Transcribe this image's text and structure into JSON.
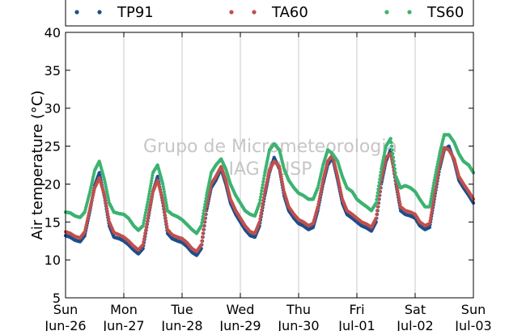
{
  "chart_data": {
    "type": "scatter",
    "ylabel": "Air temperature (°C)",
    "xlabel": "",
    "ylim": [
      5,
      40
    ],
    "xlim": [
      0,
      7
    ],
    "yticks": [
      5,
      10,
      15,
      20,
      25,
      30,
      35,
      40
    ],
    "xticks": [
      {
        "x": 0,
        "day": "Sun",
        "date": "Jun-26"
      },
      {
        "x": 1,
        "day": "Mon",
        "date": "Jun-27"
      },
      {
        "x": 2,
        "day": "Tue",
        "date": "Jun-28"
      },
      {
        "x": 3,
        "day": "Wed",
        "date": "Jun-29"
      },
      {
        "x": 4,
        "day": "Thu",
        "date": "Jun-30"
      },
      {
        "x": 5,
        "day": "Fri",
        "date": "Jul-01"
      },
      {
        "x": 6,
        "day": "Sat",
        "date": "Jul-02"
      },
      {
        "x": 7,
        "day": "Sun",
        "date": "Jul-03"
      }
    ],
    "grid": "vertical",
    "legend_position": "top",
    "watermark": [
      "Grupo de Micrometeorologia",
      "IAG / USP"
    ],
    "series": [
      {
        "name": "TP91",
        "color": "#1f4e8c",
        "x": [
          0.0,
          0.08,
          0.16,
          0.25,
          0.33,
          0.42,
          0.5,
          0.58,
          0.67,
          0.75,
          0.83,
          0.92,
          1.0,
          1.08,
          1.17,
          1.25,
          1.33,
          1.42,
          1.5,
          1.58,
          1.67,
          1.75,
          1.83,
          1.92,
          2.0,
          2.08,
          2.17,
          2.25,
          2.33,
          2.42,
          2.5,
          2.58,
          2.67,
          2.75,
          2.83,
          2.92,
          3.0,
          3.08,
          3.17,
          3.25,
          3.33,
          3.42,
          3.5,
          3.58,
          3.67,
          3.75,
          3.83,
          3.92,
          4.0,
          4.08,
          4.17,
          4.25,
          4.33,
          4.42,
          4.5,
          4.58,
          4.67,
          4.75,
          4.83,
          4.92,
          5.0,
          5.08,
          5.17,
          5.25,
          5.33,
          5.42,
          5.5,
          5.58,
          5.67,
          5.75,
          5.83,
          5.92,
          6.0,
          6.08,
          6.17,
          6.25,
          6.33,
          6.42,
          6.5,
          6.58,
          6.67,
          6.75,
          6.83,
          6.92,
          7.0
        ],
        "values": [
          13.2,
          13.0,
          12.6,
          12.4,
          13.2,
          16.5,
          19.8,
          21.5,
          18.2,
          14.5,
          13.0,
          12.8,
          12.5,
          12.0,
          11.3,
          10.8,
          11.5,
          15.5,
          19.0,
          21.0,
          17.5,
          13.5,
          12.8,
          12.5,
          12.3,
          11.8,
          11.0,
          10.6,
          11.5,
          16.5,
          19.5,
          20.5,
          22.0,
          20.0,
          17.5,
          16.0,
          15.0,
          14.0,
          13.2,
          13.0,
          14.5,
          18.5,
          21.5,
          23.5,
          22.0,
          18.5,
          16.5,
          15.5,
          14.8,
          14.5,
          14.0,
          14.3,
          16.5,
          20.0,
          22.5,
          23.5,
          20.5,
          17.5,
          16.0,
          15.5,
          15.0,
          14.5,
          14.2,
          13.8,
          15.0,
          20.0,
          23.0,
          24.5,
          20.0,
          16.5,
          16.0,
          15.8,
          15.5,
          14.5,
          14.0,
          14.3,
          18.0,
          22.0,
          24.5,
          25.0,
          23.0,
          20.5,
          19.5,
          18.5,
          17.5
        ]
      },
      {
        "name": "TA60",
        "color": "#c0504d",
        "x": [
          0.0,
          0.08,
          0.16,
          0.25,
          0.33,
          0.42,
          0.5,
          0.58,
          0.67,
          0.75,
          0.83,
          0.92,
          1.0,
          1.08,
          1.17,
          1.25,
          1.33,
          1.42,
          1.5,
          1.58,
          1.67,
          1.75,
          1.83,
          1.92,
          2.0,
          2.08,
          2.17,
          2.25,
          2.33,
          2.42,
          2.5,
          2.58,
          2.67,
          2.75,
          2.83,
          2.92,
          3.0,
          3.08,
          3.17,
          3.25,
          3.33,
          3.42,
          3.5,
          3.58,
          3.67,
          3.75,
          3.83,
          3.92,
          4.0,
          4.08,
          4.17,
          4.25,
          4.33,
          4.42,
          4.5,
          4.58,
          4.67,
          4.75,
          4.83,
          4.92,
          5.0,
          5.08,
          5.17,
          5.25,
          5.33,
          5.42,
          5.5,
          5.58,
          5.67,
          5.75,
          5.83,
          5.92,
          6.0,
          6.08,
          6.17,
          6.25,
          6.33,
          6.42,
          6.5,
          6.58,
          6.67,
          6.75,
          6.83,
          6.92,
          7.0
        ],
        "values": [
          13.7,
          13.5,
          13.1,
          12.9,
          13.7,
          16.8,
          19.5,
          20.8,
          18.5,
          15.0,
          13.6,
          13.3,
          13.0,
          12.5,
          11.8,
          11.3,
          12.0,
          15.8,
          19.0,
          20.5,
          17.8,
          14.0,
          13.3,
          13.0,
          12.8,
          12.3,
          11.5,
          11.1,
          12.0,
          17.0,
          20.0,
          21.0,
          22.3,
          20.5,
          18.0,
          16.5,
          15.5,
          14.5,
          13.7,
          13.5,
          15.0,
          19.0,
          21.8,
          23.0,
          22.3,
          19.0,
          17.0,
          16.0,
          15.3,
          15.0,
          14.5,
          14.8,
          17.0,
          20.5,
          23.0,
          23.8,
          21.0,
          18.0,
          16.5,
          16.0,
          15.5,
          15.0,
          14.7,
          14.3,
          15.5,
          20.5,
          23.5,
          24.0,
          20.5,
          17.0,
          16.5,
          16.3,
          16.0,
          15.0,
          14.5,
          14.8,
          18.5,
          22.5,
          24.8,
          24.5,
          23.3,
          21.0,
          20.0,
          19.0,
          18.0
        ]
      },
      {
        "name": "TS60",
        "color": "#3cb371",
        "x": [
          0.0,
          0.08,
          0.16,
          0.25,
          0.33,
          0.42,
          0.5,
          0.58,
          0.67,
          0.75,
          0.83,
          0.92,
          1.0,
          1.08,
          1.17,
          1.25,
          1.33,
          1.42,
          1.5,
          1.58,
          1.67,
          1.75,
          1.83,
          1.92,
          2.0,
          2.08,
          2.17,
          2.25,
          2.33,
          2.42,
          2.5,
          2.58,
          2.67,
          2.75,
          2.83,
          2.92,
          3.0,
          3.08,
          3.17,
          3.25,
          3.33,
          3.42,
          3.5,
          3.58,
          3.67,
          3.75,
          3.83,
          3.92,
          4.0,
          4.08,
          4.17,
          4.25,
          4.33,
          4.42,
          4.5,
          4.58,
          4.67,
          4.75,
          4.83,
          4.92,
          5.0,
          5.08,
          5.17,
          5.25,
          5.33,
          5.42,
          5.5,
          5.58,
          5.67,
          5.75,
          5.83,
          5.92,
          6.0,
          6.08,
          6.17,
          6.25,
          6.33,
          6.42,
          6.5,
          6.58,
          6.67,
          6.75,
          6.83,
          6.92,
          7.0
        ],
        "values": [
          16.3,
          16.2,
          15.8,
          15.6,
          16.3,
          19.0,
          21.8,
          23.0,
          20.5,
          17.5,
          16.3,
          16.1,
          16.0,
          15.5,
          14.5,
          13.9,
          14.5,
          18.0,
          21.5,
          22.5,
          20.0,
          16.5,
          16.0,
          15.7,
          15.3,
          14.7,
          14.0,
          13.5,
          14.5,
          18.5,
          21.5,
          22.5,
          23.3,
          22.0,
          20.0,
          18.5,
          17.5,
          16.5,
          16.0,
          15.8,
          17.5,
          21.5,
          24.5,
          25.3,
          24.5,
          22.0,
          20.5,
          19.5,
          18.8,
          18.5,
          18.0,
          18.0,
          19.5,
          22.5,
          24.5,
          24.0,
          23.0,
          21.0,
          19.5,
          19.0,
          18.0,
          17.5,
          17.0,
          16.5,
          17.5,
          22.0,
          25.0,
          26.0,
          21.0,
          19.5,
          19.8,
          19.5,
          19.0,
          18.0,
          17.0,
          17.0,
          20.5,
          24.0,
          26.5,
          26.5,
          25.5,
          24.0,
          23.0,
          22.5,
          21.5
        ]
      }
    ]
  }
}
